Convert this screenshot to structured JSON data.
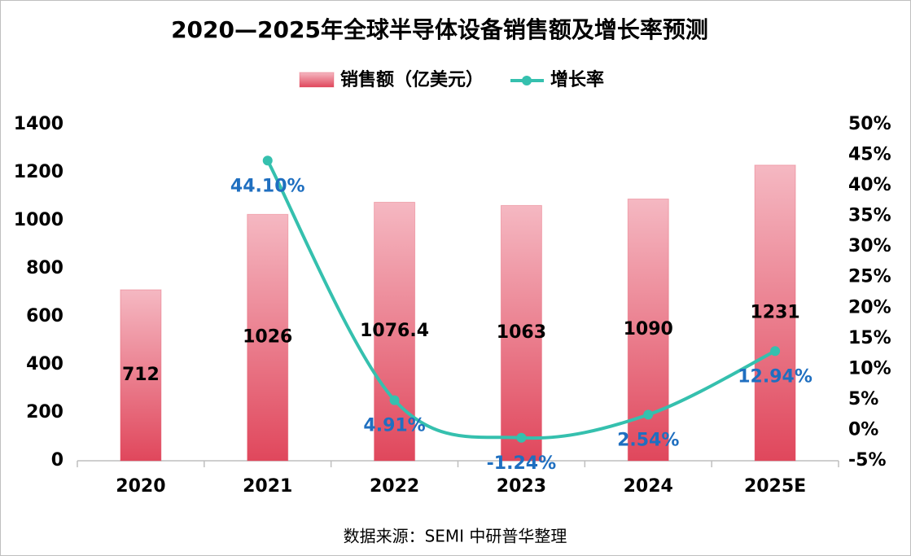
{
  "chart_data": {
    "type": "bar",
    "title": "2020—2025年全球半导体设备销售额及增长率预测",
    "categories": [
      "2020",
      "2021",
      "2022",
      "2023",
      "2024",
      "2025E"
    ],
    "series": [
      {
        "name": "销售额（亿美元）",
        "type": "bar",
        "color": "#e04a5e",
        "values": [
          712,
          1026,
          1076.4,
          1063,
          1090,
          1231
        ]
      },
      {
        "name": "增长率",
        "type": "line",
        "axis": "y2",
        "color": "#35c0ae",
        "values": [
          null,
          44.1,
          4.91,
          -1.24,
          2.54,
          12.94
        ],
        "value_labels": [
          null,
          "44.10%",
          "4.91%",
          "-1.24%",
          "2.54%",
          "12.94%"
        ]
      }
    ],
    "ylim": [
      0,
      1400
    ],
    "yticks": [
      0,
      200,
      400,
      600,
      800,
      1000,
      1200,
      1400
    ],
    "y2lim": [
      -5,
      50
    ],
    "y2ticks": [
      {
        "value": -5,
        "label": "-5%"
      },
      {
        "value": 0,
        "label": "0%"
      },
      {
        "value": 5,
        "label": "5%"
      },
      {
        "value": 10,
        "label": "10%"
      },
      {
        "value": 15,
        "label": "15%"
      },
      {
        "value": 20,
        "label": "20%"
      },
      {
        "value": 25,
        "label": "25%"
      },
      {
        "value": 30,
        "label": "30%"
      },
      {
        "value": 35,
        "label": "35%"
      },
      {
        "value": 40,
        "label": "40%"
      },
      {
        "value": 45,
        "label": "45%"
      },
      {
        "value": 50,
        "label": "50%"
      }
    ],
    "legend": "top",
    "grid": false,
    "source": "数据来源：SEMI 中研普华整理"
  }
}
